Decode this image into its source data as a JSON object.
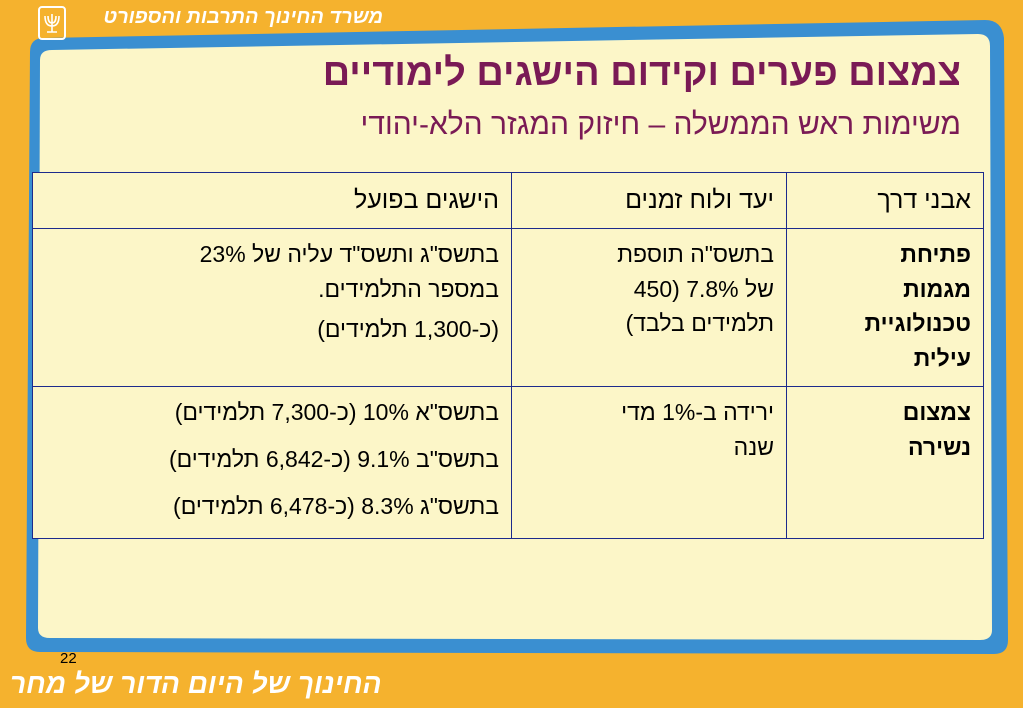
{
  "header": {
    "ministry": "משרד החינוך התרבות והספורט"
  },
  "slide": {
    "title": "צמצום פערים וקידום הישגים לימודיים",
    "subtitle": "משימות ראש הממשלה – חיזוק המגזר הלא-יהודי",
    "page_number": "22"
  },
  "footer": {
    "slogan": "החינוך של היום הדור של מחר"
  },
  "table": {
    "headers": [
      "אבני דרך",
      "יעד ולוח זמנים",
      "הישגים בפועל"
    ],
    "rows": [
      {
        "milestone": [
          "פתיחת",
          "מגמות",
          "טכנולוגיית",
          "עילית"
        ],
        "target": [
          "בתשס\"ה תוספת",
          "של 7.8% (450",
          "תלמידים בלבד)"
        ],
        "achievement": [
          "בתשס\"ג ותשס\"ד עליה של 23%",
          "במספר התלמידים.",
          "(כ-1,300 תלמידים)"
        ]
      },
      {
        "milestone": [
          "צמצום",
          "נשירה"
        ],
        "target": [
          "ירידה ב-1% מדי",
          "שנה"
        ],
        "achievement": [
          "בתשס\"א 10% (כ-7,300 תלמידים)",
          "בתשס\"ב 9.1% (כ-6,842 תלמידים)",
          "בתשס\"ג 8.3% (כ-6,478 תלמידים)"
        ]
      }
    ]
  },
  "colors": {
    "frame_orange": "#f5b22e",
    "frame_blue": "#3a8fd1",
    "content_cream": "#fcf6c8",
    "title_purple": "#7a1a55",
    "table_border": "#1c2a8c"
  }
}
